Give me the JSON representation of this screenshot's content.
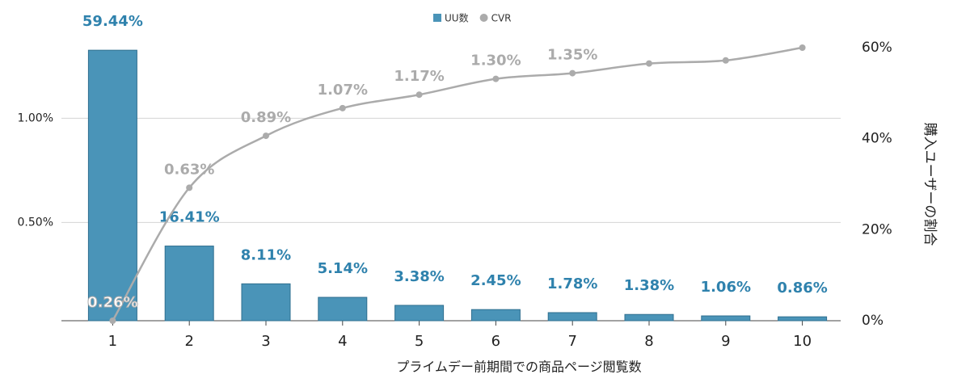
{
  "chart_data": {
    "type": "bar",
    "x_label": "プライムデー前期間での商品ページ閲覧数",
    "y2_label": "購入ユーザーの割合",
    "categories": [
      "1",
      "2",
      "3",
      "4",
      "5",
      "6",
      "7",
      "8",
      "9",
      "10"
    ],
    "series": [
      {
        "name": "UU数",
        "type": "bar",
        "axis": "y2",
        "color": "#4a94b8",
        "values": [
          59.44,
          16.41,
          8.11,
          5.14,
          3.38,
          2.45,
          1.78,
          1.38,
          1.06,
          0.86
        ],
        "value_labels": [
          "59.44%",
          "16.41%",
          "8.11%",
          "5.14%",
          "3.38%",
          "2.45%",
          "1.78%",
          "1.38%",
          "1.06%",
          "0.86%"
        ]
      },
      {
        "name": "CVR",
        "type": "line",
        "axis": "y",
        "color": "#ababab",
        "values": [
          0.26,
          0.63,
          0.89,
          1.07,
          1.17,
          1.3,
          1.35,
          1.44,
          1.47,
          1.6
        ],
        "value_labels": [
          "0.26%",
          "0.63%",
          "0.89%",
          "1.07%",
          "1.17%",
          "1.30%",
          "1.35%",
          null,
          null,
          null
        ]
      }
    ],
    "ylim": [
      0.26,
      1.6
    ],
    "y_log": true,
    "yticks": [
      {
        "value": 0.5,
        "label": "0.50%"
      },
      {
        "value": 1,
        "label": "1.00%"
      }
    ],
    "y2lim": [
      0,
      60
    ],
    "y2ticks": [
      {
        "value": 0,
        "label": "0%"
      },
      {
        "value": 20,
        "label": "20%"
      },
      {
        "value": 40,
        "label": "40%"
      },
      {
        "value": 60,
        "label": "60%"
      }
    ],
    "grid": true,
    "legend": "top"
  }
}
